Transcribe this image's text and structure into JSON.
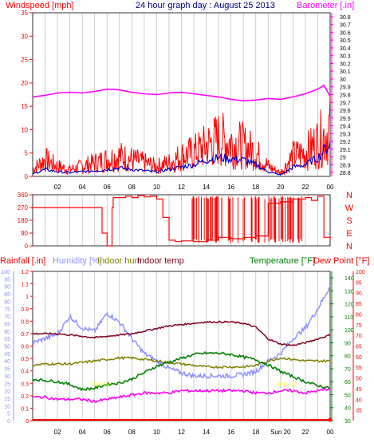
{
  "colors": {
    "background": "#ffffff",
    "gridline": "#c0c0c0",
    "tick_dark": "#000000",
    "wind": "#ff0000",
    "gust": "#ff0000",
    "avg_wind": "#0000cc",
    "barometer": "#ff00ff",
    "direction": "#ff0000",
    "rainfall": "#ff0000",
    "humidity": "#9090ff",
    "indoor_hum": "#808000",
    "indoor_temp": "#800020",
    "temperature": "#008000",
    "dew_point": "#ff00ff",
    "left_axis_rain": "#ff0000",
    "left_axis_hum": "#9090ff",
    "right_axis_temp": "#008000",
    "right_axis_dew": "#ff0000",
    "title": "#000080",
    "annot": "#ffff00"
  },
  "chart_data": [
    {
      "type": "line",
      "title": "24 hour graph day : August 25 2013",
      "ylabel": "Windspeed [mph]",
      "y2label": "Barometer [.in]",
      "ylim": [
        0,
        35
      ],
      "y_ticks": [
        0,
        5,
        10,
        15,
        20,
        25,
        30,
        35
      ],
      "y2lim": [
        28.75,
        30.85
      ],
      "y2_ticks": [
        "28.8",
        "28.9",
        "29",
        "29.1",
        "29.2",
        "29.3",
        "29.4",
        "29.5",
        "29.6",
        "29.7",
        "29.8",
        "29.9",
        "30",
        "30.1",
        "30.2",
        "30.3",
        "30.4",
        "30.5",
        "30.6",
        "30.7",
        "30.8"
      ],
      "x_ticks": [
        "02",
        "04",
        "06",
        "08",
        "10",
        "12",
        "14",
        "16",
        "18",
        "20",
        "22",
        "00"
      ],
      "series": [
        {
          "key": "barometer",
          "axis": "y2",
          "x": [
            0,
            1,
            2,
            3,
            4,
            5,
            6,
            7,
            8,
            9,
            10,
            11,
            12,
            13,
            14,
            15,
            16,
            17,
            18,
            19,
            20,
            21,
            22,
            22.5,
            23,
            23.5,
            24
          ],
          "values": [
            29.77,
            29.79,
            29.82,
            29.83,
            29.82,
            29.84,
            29.87,
            29.86,
            29.83,
            29.81,
            29.8,
            29.82,
            29.83,
            29.81,
            29.79,
            29.77,
            29.74,
            29.72,
            29.73,
            29.75,
            29.74,
            29.77,
            29.81,
            29.84,
            29.87,
            29.92,
            29.78
          ]
        },
        {
          "key": "gust",
          "x": [
            0,
            1,
            2,
            3,
            4,
            5,
            6,
            7,
            8,
            9,
            10,
            11,
            12,
            13,
            14,
            15,
            16,
            17,
            18,
            19,
            20,
            21,
            22,
            23,
            24
          ],
          "values": [
            2,
            5,
            3,
            2,
            3,
            4,
            5,
            6,
            5,
            4,
            3,
            4,
            6,
            7,
            9,
            11,
            10,
            9,
            7,
            3,
            1,
            6,
            7,
            10,
            14
          ]
        },
        {
          "key": "avg_wind",
          "x": [
            0,
            1,
            2,
            3,
            4,
            5,
            6,
            7,
            8,
            9,
            10,
            11,
            12,
            13,
            14,
            15,
            16,
            17,
            18,
            19,
            20,
            21,
            22,
            23,
            24
          ],
          "values": [
            0.5,
            1.5,
            1,
            0.8,
            1,
            1.2,
            1.5,
            1.8,
            1.5,
            1.2,
            1,
            1.5,
            2,
            2.5,
            3.5,
            4,
            3.8,
            3.5,
            2.5,
            1,
            0.3,
            2,
            2.5,
            4,
            7
          ]
        }
      ]
    },
    {
      "type": "line",
      "ylim": [
        0,
        360
      ],
      "y_ticks": [
        0,
        90,
        180,
        270,
        360
      ],
      "compass": [
        "N",
        "W",
        "S",
        "E",
        "N"
      ],
      "series": [
        {
          "key": "direction",
          "x": [
            0,
            5.5,
            5.6,
            6,
            6.4,
            6.5,
            7.5,
            8,
            8.5,
            9,
            9.5,
            10,
            10.5,
            11,
            11.5,
            12,
            13,
            14,
            15,
            16,
            17,
            18,
            19,
            20,
            21,
            22,
            22.5,
            23,
            23.5,
            24
          ],
          "values": [
            270,
            270,
            90,
            0,
            270,
            340,
            350,
            340,
            355,
            345,
            350,
            330,
            200,
            40,
            30,
            35,
            30,
            40,
            60,
            50,
            60,
            70,
            300,
            310,
            330,
            340,
            320,
            350,
            60,
            40
          ]
        }
      ]
    },
    {
      "type": "line",
      "ylabel": "Rainfall [.in]",
      "y2label": "Temperature [°F]",
      "y3label": "Dew Point [°F]",
      "legend": [
        "Humidity [%]",
        "Indoor hum",
        "Indoor temp"
      ],
      "rain_lim": [
        0,
        1.2
      ],
      "rain_ticks": [
        "0",
        "0.1",
        "0.2",
        "0.3",
        "0.4",
        "0.5",
        "0.6",
        "0.7",
        "0.8",
        "0.9",
        "1",
        "1.1",
        "1.2"
      ],
      "hum_lim": [
        0,
        100
      ],
      "hum_ticks": [
        "0",
        "5",
        "10",
        "15",
        "20",
        "25",
        "30",
        "35",
        "40",
        "45",
        "50",
        "55",
        "60",
        "65",
        "70",
        "75",
        "80",
        "85",
        "90",
        "95",
        "100"
      ],
      "temp_lim": [
        30,
        145
      ],
      "temp_ticks": [
        "30",
        "40",
        "50",
        "60",
        "70",
        "80",
        "90",
        "100",
        "110",
        "120",
        "130",
        "140"
      ],
      "dew_lim": [
        30,
        100
      ],
      "dew_ticks": [
        "35",
        "40",
        "45",
        "50",
        "55",
        "60",
        "65",
        "70",
        "75",
        "80",
        "85",
        "90",
        "95",
        "100"
      ],
      "x_ticks": [
        "02",
        "04",
        "06",
        "08",
        "10",
        "12",
        "14",
        "16",
        "18",
        "Sun 20",
        "22",
        "00"
      ],
      "annotations": [
        {
          "x": 5.5,
          "y": 0.28,
          "text": "Sun 00"
        },
        {
          "x": 20.5,
          "y": 0.28,
          "text": "Sun 20"
        }
      ],
      "series": [
        {
          "key": "humidity",
          "axis": "hum",
          "x": [
            0,
            1,
            2,
            3,
            4,
            5,
            6,
            7,
            8,
            9,
            10,
            11,
            12,
            13,
            14,
            15,
            16,
            17,
            18,
            19,
            20,
            21,
            22,
            23,
            24
          ],
          "values": [
            52,
            55,
            58,
            70,
            62,
            60,
            72,
            66,
            55,
            45,
            40,
            35,
            32,
            30,
            30,
            30,
            30,
            31,
            33,
            40,
            45,
            55,
            62,
            75,
            90
          ]
        },
        {
          "key": "indoor_temp",
          "axis": "temp",
          "x": [
            0,
            1,
            2,
            3,
            4,
            5,
            6,
            7,
            8,
            9,
            10,
            11,
            12,
            13,
            14,
            15,
            16,
            17,
            18,
            19,
            20,
            21,
            22,
            23,
            24
          ],
          "values": [
            97,
            97,
            97,
            96,
            95,
            94,
            95,
            96,
            97,
            99,
            101,
            103,
            104,
            105,
            106,
            106,
            106,
            105,
            102,
            93,
            89,
            88,
            90,
            93,
            96
          ]
        },
        {
          "key": "indoor_hum",
          "axis": "hum",
          "x": [
            0,
            1,
            2,
            3,
            4,
            5,
            6,
            7,
            8,
            9,
            10,
            11,
            12,
            13,
            14,
            15,
            16,
            17,
            18,
            19,
            20,
            21,
            22,
            23,
            24
          ],
          "values": [
            37,
            38,
            38,
            38,
            39,
            40,
            41,
            42,
            42,
            41,
            40,
            39,
            38,
            37,
            36,
            36,
            36,
            36,
            37,
            40,
            42,
            41,
            40,
            40,
            40
          ]
        },
        {
          "key": "temperature",
          "axis": "temp",
          "x": [
            0,
            1,
            2,
            3,
            4,
            5,
            6,
            7,
            8,
            9,
            10,
            11,
            12,
            13,
            14,
            15,
            16,
            17,
            18,
            19,
            20,
            21,
            22,
            23,
            24
          ],
          "values": [
            62,
            61,
            60,
            58,
            54,
            55,
            58,
            59,
            62,
            67,
            72,
            75,
            78,
            81,
            82,
            82,
            81,
            79,
            77,
            73,
            68,
            64,
            60,
            57,
            55
          ]
        },
        {
          "key": "dew_point",
          "axis": "dew",
          "x": [
            0,
            1,
            2,
            3,
            4,
            5,
            6,
            7,
            8,
            9,
            10,
            11,
            12,
            13,
            14,
            15,
            16,
            17,
            18,
            19,
            20,
            21,
            22,
            23,
            24
          ],
          "values": [
            41,
            41,
            40,
            40,
            40,
            39,
            40,
            41,
            42,
            43,
            43,
            43,
            44,
            44,
            44,
            44,
            44,
            44,
            43,
            43,
            44,
            44,
            43,
            44,
            45
          ]
        },
        {
          "key": "rainfall",
          "axis": "rain",
          "x": [
            0,
            24
          ],
          "values": [
            0,
            0
          ]
        }
      ]
    }
  ]
}
